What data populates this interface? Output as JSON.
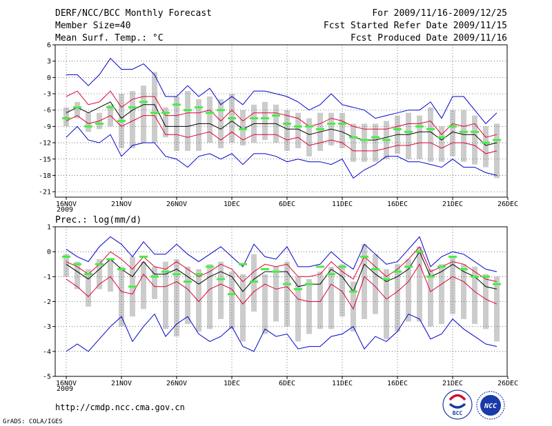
{
  "header": {
    "title": "DERF/NCC/BCC Monthly Forecast",
    "member_size": "Member Size=40",
    "variable": "Mean Surf. Temp.: °C",
    "period": "For 2009/11/16-2009/12/25",
    "started": "Fcst Started Refer Date 2009/11/15",
    "produced": "Fcst Produced Date 2009/11/16"
  },
  "footer": {
    "url": "http://cmdp.ncc.cma.gov.cn",
    "credit": "GrADS: COLA/IGES",
    "logo_bcc": "BCC",
    "logo_ncc": "NCC"
  },
  "colors": {
    "envelope": "#0000cc",
    "spread": "#dd0033",
    "mean": "#000000",
    "bars": "#cccccc",
    "observed": "#44ee44"
  },
  "chart_data": [
    {
      "type": "line",
      "title": "Mean Surf. Temp.: °C",
      "xlabel": "2009",
      "x_tick_labels": [
        "16NOV",
        "21NOV",
        "26NOV",
        "1DEC",
        "6DEC",
        "11DEC",
        "16DEC",
        "21DEC",
        "26DEC"
      ],
      "x_tick_days": [
        0,
        5,
        10,
        15,
        20,
        25,
        30,
        35,
        40
      ],
      "y_ticks": [
        6,
        3,
        0,
        -3,
        -6,
        -9,
        -12,
        -15,
        -18,
        -21
      ],
      "ylim": [
        -22,
        6
      ],
      "grid": true,
      "days": [
        0,
        1,
        2,
        3,
        4,
        5,
        6,
        7,
        8,
        9,
        10,
        11,
        12,
        13,
        14,
        15,
        16,
        17,
        18,
        19,
        20,
        21,
        22,
        23,
        24,
        25,
        26,
        27,
        28,
        29,
        30,
        31,
        32,
        33,
        34,
        35,
        36,
        37,
        38,
        39
      ],
      "series": [
        {
          "name": "max",
          "values": [
            0.5,
            0.5,
            -1.5,
            0.5,
            3.5,
            1.5,
            1.5,
            2.5,
            0.5,
            -3.5,
            -3.5,
            -1.5,
            -3.5,
            -2.0,
            -5.0,
            -3.5,
            -5.0,
            -2.5,
            -2.5,
            -3.0,
            -3.5,
            -4.5,
            -6.0,
            -5.0,
            -3.0,
            -5.0,
            -5.5,
            -6.0,
            -7.5,
            -7.0,
            -6.5,
            -6.0,
            -6.0,
            -4.5,
            -7.5,
            -3.5,
            -3.5,
            -6.0,
            -8.5,
            -6.5
          ]
        },
        {
          "name": "upper",
          "values": [
            -3.5,
            -2.5,
            -5.0,
            -4.5,
            -2.5,
            -5.5,
            -4.0,
            -3.5,
            -3.5,
            -7.0,
            -7.0,
            -6.5,
            -6.5,
            -6.0,
            -8.0,
            -6.0,
            -8.0,
            -6.5,
            -6.5,
            -6.5,
            -7.0,
            -7.5,
            -9.0,
            -8.5,
            -7.5,
            -8.0,
            -9.0,
            -9.5,
            -9.5,
            -9.5,
            -9.0,
            -8.5,
            -8.5,
            -8.0,
            -10.5,
            -8.5,
            -9.0,
            -8.5,
            -11.0,
            -10.5
          ]
        },
        {
          "name": "mean",
          "values": [
            -6.5,
            -5.5,
            -6.5,
            -5.5,
            -4.5,
            -7.5,
            -6.0,
            -5.0,
            -5.0,
            -9.0,
            -9.0,
            -9.0,
            -8.5,
            -8.5,
            -9.5,
            -8.0,
            -9.5,
            -8.5,
            -8.5,
            -8.5,
            -9.5,
            -9.5,
            -10.5,
            -10.0,
            -9.5,
            -10.0,
            -11.0,
            -11.5,
            -11.5,
            -11.0,
            -10.5,
            -10.5,
            -10.0,
            -10.0,
            -11.5,
            -10.0,
            -10.5,
            -10.5,
            -12.5,
            -12.0
          ]
        },
        {
          "name": "lower",
          "values": [
            -8.0,
            -7.0,
            -8.5,
            -8.0,
            -7.0,
            -9.0,
            -8.0,
            -7.0,
            -7.0,
            -10.5,
            -10.5,
            -11.0,
            -10.5,
            -10.0,
            -11.5,
            -10.0,
            -11.5,
            -10.5,
            -10.5,
            -10.5,
            -11.5,
            -11.0,
            -12.5,
            -12.0,
            -11.5,
            -12.0,
            -13.5,
            -13.5,
            -13.5,
            -13.0,
            -12.5,
            -12.5,
            -12.0,
            -12.0,
            -13.0,
            -12.0,
            -12.0,
            -12.5,
            -14.0,
            -13.5
          ]
        },
        {
          "name": "min",
          "values": [
            -11.0,
            -9.0,
            -11.5,
            -12.0,
            -10.5,
            -14.5,
            -12.5,
            -12.0,
            -12.0,
            -14.5,
            -15.0,
            -16.5,
            -14.5,
            -14.0,
            -15.0,
            -14.0,
            -16.0,
            -14.0,
            -14.0,
            -14.5,
            -15.5,
            -15.0,
            -15.5,
            -15.5,
            -16.0,
            -15.0,
            -18.5,
            -17.0,
            -16.0,
            -14.5,
            -14.5,
            -15.5,
            -15.5,
            -16.0,
            -16.5,
            -15.0,
            -16.5,
            -16.5,
            -17.5,
            -18.0
          ]
        }
      ],
      "ensemble_range": [
        [
          -5.5,
          -9.0
        ],
        [
          -4.5,
          -7.5
        ],
        [
          -6.5,
          -10.0
        ],
        [
          -6.5,
          -9.5
        ],
        [
          -5.0,
          -9.0
        ],
        [
          -3.0,
          -13.0
        ],
        [
          -2.5,
          -13.0
        ],
        [
          -1.5,
          -12.0
        ],
        [
          1.0,
          -12.0
        ],
        [
          -5.5,
          -11.0
        ],
        [
          -3.5,
          -13.5
        ],
        [
          -2.5,
          -13.5
        ],
        [
          -4.0,
          -13.5
        ],
        [
          -3.5,
          -12.0
        ],
        [
          -4.0,
          -13.0
        ],
        [
          -3.0,
          -12.0
        ],
        [
          -6.0,
          -12.5
        ],
        [
          -5.0,
          -12.0
        ],
        [
          -4.5,
          -11.5
        ],
        [
          -5.0,
          -12.0
        ],
        [
          -6.0,
          -13.5
        ],
        [
          -6.5,
          -13.0
        ],
        [
          -7.5,
          -14.5
        ],
        [
          -6.5,
          -13.5
        ],
        [
          -6.5,
          -12.5
        ],
        [
          -6.5,
          -13.0
        ],
        [
          -8.5,
          -15.5
        ],
        [
          -8.5,
          -15.5
        ],
        [
          -8.5,
          -15.5
        ],
        [
          -8.0,
          -15.0
        ],
        [
          -7.0,
          -14.0
        ],
        [
          -6.5,
          -15.0
        ],
        [
          -7.0,
          -15.0
        ],
        [
          -5.5,
          -15.5
        ],
        [
          -9.0,
          -15.5
        ],
        [
          -6.0,
          -14.5
        ],
        [
          -6.0,
          -15.5
        ],
        [
          -7.0,
          -16.0
        ],
        [
          -9.0,
          -16.5
        ],
        [
          -8.5,
          -18.5
        ]
      ],
      "observed_days": [
        0,
        1,
        2,
        3,
        4,
        5,
        6,
        7,
        8,
        9,
        10,
        11,
        12,
        13,
        14,
        15,
        16,
        17,
        18,
        19,
        20,
        21,
        22,
        23,
        24,
        25,
        26,
        27,
        28,
        29,
        30,
        31,
        32,
        33,
        34,
        35,
        36,
        37,
        38,
        39
      ],
      "observed": [
        -7.5,
        -5.5,
        -9.0,
        -8.5,
        -5.5,
        -8.0,
        -5.5,
        -4.5,
        -6.5,
        -6.5,
        -5.0,
        -6.0,
        -5.5,
        -6.5,
        -6.0,
        -7.5,
        -9.5,
        -7.5,
        -7.5,
        -7.0,
        -8.5,
        -9.0,
        -9.0,
        -9.5,
        -8.5,
        -8.5,
        -11.0,
        -11.5,
        -11.0,
        -11.5,
        -9.5,
        -10.0,
        -9.0,
        -9.5,
        -11.0,
        -9.0,
        -10.0,
        -10.0,
        -12.0,
        -11.5
      ]
    },
    {
      "type": "line",
      "title": "Prec.: log(mm/d)",
      "xlabel": "2009",
      "x_tick_labels": [
        "16NOV",
        "21NOV",
        "26NOV",
        "1DEC",
        "6DEC",
        "11DEC",
        "16DEC",
        "21DEC",
        "26DEC"
      ],
      "x_tick_days": [
        0,
        5,
        10,
        15,
        20,
        25,
        30,
        35,
        40
      ],
      "y_ticks": [
        1,
        0,
        -1,
        -2,
        -3,
        -4,
        -5
      ],
      "ylim": [
        -5,
        1
      ],
      "grid": true,
      "days": [
        0,
        1,
        2,
        3,
        4,
        5,
        6,
        7,
        8,
        9,
        10,
        11,
        12,
        13,
        14,
        15,
        16,
        17,
        18,
        19,
        20,
        21,
        22,
        23,
        24,
        25,
        26,
        27,
        28,
        29,
        30,
        31,
        32,
        33,
        34,
        35,
        36,
        37,
        38,
        39
      ],
      "series": [
        {
          "name": "max",
          "values": [
            0.1,
            -0.2,
            -0.4,
            0.2,
            0.6,
            0.3,
            -0.2,
            0.4,
            -0.1,
            -0.1,
            0.3,
            -0.1,
            -0.4,
            -0.1,
            0.2,
            -0.2,
            -0.6,
            0.3,
            -0.2,
            -0.3,
            0.2,
            -0.6,
            -0.6,
            -0.5,
            0.0,
            -0.4,
            -0.7,
            0.3,
            -0.1,
            -0.5,
            -0.4,
            0.1,
            0.6,
            -0.6,
            -0.2,
            0.0,
            -0.1,
            -0.4,
            -0.7,
            -0.8
          ]
        },
        {
          "name": "upper",
          "values": [
            -0.4,
            -0.6,
            -0.9,
            -0.5,
            0.0,
            -0.3,
            -0.7,
            -0.2,
            -0.6,
            -0.7,
            -0.4,
            -0.7,
            -1.0,
            -0.8,
            -0.5,
            -0.7,
            -1.2,
            -0.8,
            -0.5,
            -0.6,
            -0.5,
            -1.0,
            -1.0,
            -0.9,
            -0.4,
            -0.8,
            -1.1,
            -0.2,
            -0.6,
            -1.0,
            -0.7,
            -0.3,
            0.2,
            -0.8,
            -0.6,
            -0.4,
            -0.5,
            -0.8,
            -1.1,
            -1.2
          ]
        },
        {
          "name": "mean",
          "values": [
            -0.5,
            -0.8,
            -1.1,
            -0.7,
            -0.3,
            -0.7,
            -1.0,
            -0.4,
            -0.9,
            -0.9,
            -0.7,
            -1.0,
            -1.3,
            -1.0,
            -0.8,
            -1.0,
            -1.6,
            -1.1,
            -0.8,
            -0.8,
            -0.8,
            -1.4,
            -1.3,
            -1.3,
            -0.7,
            -1.0,
            -1.6,
            -0.5,
            -0.9,
            -1.2,
            -1.0,
            -0.7,
            0.0,
            -1.0,
            -0.8,
            -0.5,
            -0.8,
            -1.0,
            -1.4,
            -1.5
          ]
        },
        {
          "name": "lower",
          "values": [
            -1.1,
            -1.4,
            -1.8,
            -1.3,
            -1.0,
            -1.6,
            -1.7,
            -0.9,
            -1.4,
            -1.4,
            -1.2,
            -1.5,
            -2.0,
            -1.5,
            -1.3,
            -1.5,
            -2.1,
            -1.6,
            -1.3,
            -1.5,
            -1.4,
            -1.9,
            -2.0,
            -2.0,
            -1.3,
            -1.6,
            -2.3,
            -1.0,
            -1.4,
            -1.9,
            -1.6,
            -1.2,
            -0.5,
            -1.6,
            -1.3,
            -1.0,
            -1.2,
            -1.6,
            -1.9,
            -2.1
          ]
        },
        {
          "name": "min",
          "values": [
            -4.0,
            -3.7,
            -4.0,
            -3.5,
            -3.0,
            -2.6,
            -3.6,
            -3.0,
            -2.5,
            -3.4,
            -2.9,
            -2.6,
            -3.3,
            -3.6,
            -3.4,
            -3.0,
            -3.8,
            -4.0,
            -3.1,
            -3.4,
            -3.3,
            -3.9,
            -3.8,
            -3.8,
            -3.4,
            -3.3,
            -3.0,
            -3.9,
            -3.4,
            -3.6,
            -3.2,
            -2.5,
            -2.7,
            -3.5,
            -3.3,
            -2.7,
            -3.1,
            -3.4,
            -3.7,
            -3.8
          ]
        }
      ],
      "ensemble_range": [
        [
          -0.1,
          -1.0
        ],
        [
          -0.4,
          -1.5
        ],
        [
          -0.7,
          -2.2
        ],
        [
          -0.3,
          -1.5
        ],
        [
          -0.3,
          -1.6
        ],
        [
          -0.6,
          -3.0
        ],
        [
          -0.2,
          -2.6
        ],
        [
          -0.4,
          -2.3
        ],
        [
          -0.6,
          -1.9
        ],
        [
          -0.4,
          -3.1
        ],
        [
          -0.3,
          -3.4
        ],
        [
          -0.6,
          -2.9
        ],
        [
          -0.7,
          -3.2
        ],
        [
          -0.5,
          -3.1
        ],
        [
          -0.4,
          -2.7
        ],
        [
          -0.8,
          -3.1
        ],
        [
          -0.9,
          -3.6
        ],
        [
          -0.1,
          -2.4
        ],
        [
          -0.9,
          -3.3
        ],
        [
          -0.6,
          -2.8
        ],
        [
          -0.4,
          -3.0
        ],
        [
          -1.0,
          -3.6
        ],
        [
          -1.1,
          -3.3
        ],
        [
          -0.8,
          -3.1
        ],
        [
          -0.6,
          -3.1
        ],
        [
          -0.5,
          -2.6
        ],
        [
          -1.2,
          -3.2
        ],
        [
          0.3,
          -2.7
        ],
        [
          -0.1,
          -2.5
        ],
        [
          -0.7,
          -3.5
        ],
        [
          -0.5,
          -3.2
        ],
        [
          -0.3,
          -2.8
        ],
        [
          0.2,
          -2.8
        ],
        [
          -0.7,
          -3.0
        ],
        [
          -0.5,
          -2.9
        ],
        [
          -0.2,
          -2.5
        ],
        [
          -0.5,
          -2.7
        ],
        [
          -0.6,
          -2.9
        ],
        [
          -0.9,
          -3.1
        ],
        [
          -1.0,
          -3.6
        ]
      ],
      "observed_days": [
        0,
        1,
        2,
        3,
        4,
        5,
        6,
        7,
        8,
        9,
        10,
        11,
        12,
        13,
        14,
        15,
        16,
        17,
        18,
        19,
        20,
        21,
        22,
        23,
        24,
        25,
        26,
        27,
        28,
        29,
        30,
        31,
        32,
        33,
        34,
        35,
        36,
        37,
        38,
        39
      ],
      "observed": [
        -0.2,
        -0.5,
        -0.9,
        -0.5,
        -0.3,
        -0.7,
        -1.4,
        -0.2,
        -1.0,
        -0.8,
        -0.9,
        -1.2,
        -0.9,
        -0.6,
        -1.1,
        -1.7,
        -0.5,
        -1.2,
        -0.7,
        -0.8,
        -1.3,
        -1.5,
        -1.3,
        -0.6,
        -0.9,
        -0.6,
        -1.6,
        -0.2,
        -0.7,
        -1.1,
        -0.8,
        -0.6,
        0.0,
        -1.0,
        -0.6,
        -0.2,
        -0.7,
        -1.0,
        -1.0,
        -1.3
      ]
    }
  ]
}
